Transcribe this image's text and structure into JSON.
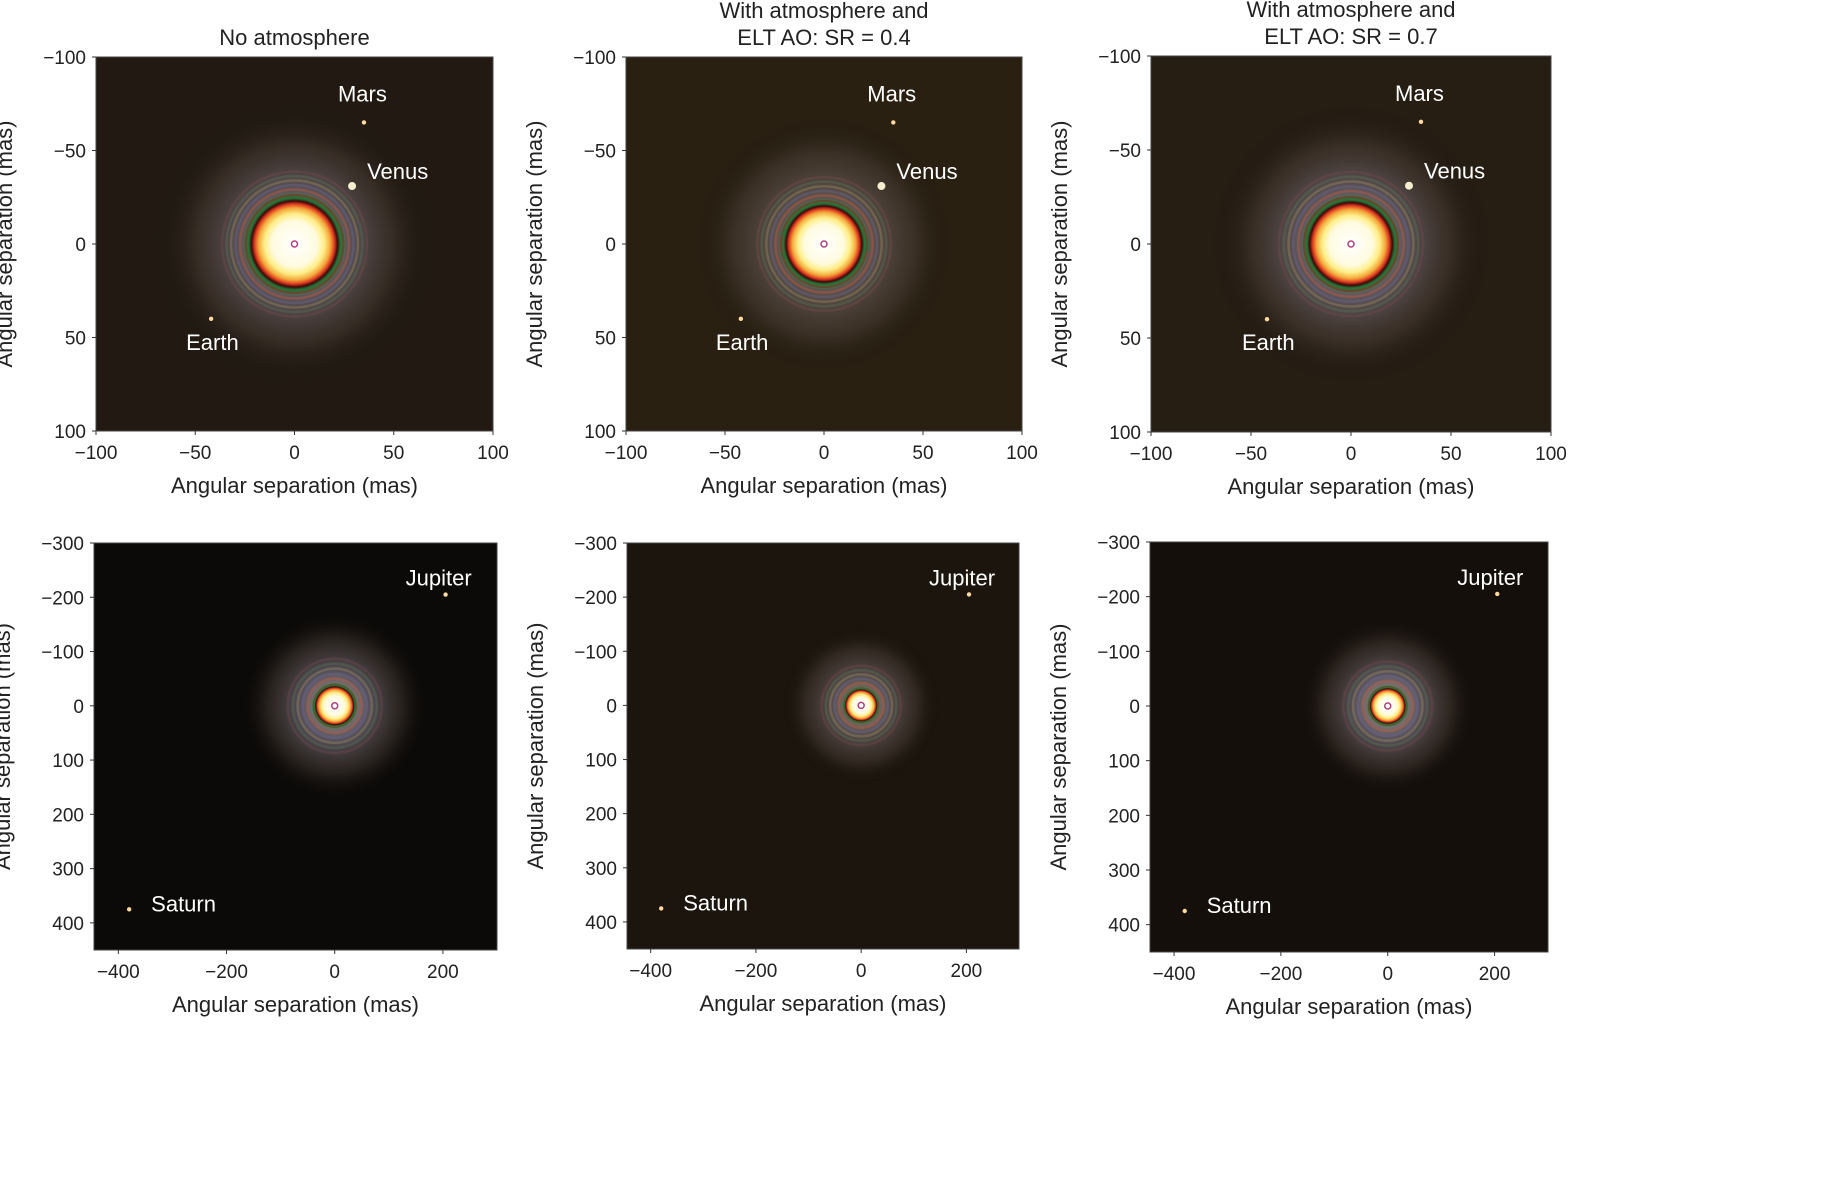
{
  "chart_data": [
    {
      "type": "heatmap",
      "title": [
        "No atmosphere"
      ],
      "xlabel": "Angular separation (mas)",
      "ylabel": "Angular separation (mas)",
      "xlim": [
        -100,
        100
      ],
      "ylim": [
        -100,
        100
      ],
      "y_inverted": true,
      "xticks": [
        -100,
        -50,
        0,
        50,
        100
      ],
      "yticks": [
        -100,
        -50,
        0,
        50,
        100
      ],
      "xtick_labels": [
        "−100",
        "−50",
        "0",
        "50",
        "100"
      ],
      "ytick_labels": [
        "−100",
        "−50",
        "0",
        "50",
        "100"
      ],
      "grid": false,
      "star_profile": "sharp",
      "background_color": "#221a12",
      "objects": [
        {
          "name": "Mars",
          "x": 35,
          "y": -65
        },
        {
          "name": "Venus",
          "x": 29,
          "y": -31
        },
        {
          "name": "Earth",
          "x": -42,
          "y": 40
        }
      ]
    },
    {
      "type": "heatmap",
      "title": [
        "With atmosphere and",
        "ELT AO: SR = 0.4"
      ],
      "xlabel": "Angular separation (mas)",
      "ylabel": "Angular separation (mas)",
      "xlim": [
        -100,
        100
      ],
      "ylim": [
        -100,
        100
      ],
      "y_inverted": true,
      "xticks": [
        -100,
        -50,
        0,
        50,
        100
      ],
      "yticks": [
        -100,
        -50,
        0,
        50,
        100
      ],
      "xtick_labels": [
        "−100",
        "−50",
        "0",
        "50",
        "100"
      ],
      "ytick_labels": [
        "−100",
        "−50",
        "0",
        "50",
        "100"
      ],
      "grid": false,
      "star_profile": "soft",
      "background_color": "#2a2012",
      "objects": [
        {
          "name": "Mars",
          "x": 35,
          "y": -65
        },
        {
          "name": "Venus",
          "x": 29,
          "y": -31
        },
        {
          "name": "Earth",
          "x": -42,
          "y": 40
        }
      ]
    },
    {
      "type": "heatmap",
      "title": [
        "With atmosphere and",
        "ELT AO: SR = 0.7"
      ],
      "xlabel": "Angular separation (mas)",
      "ylabel": "Angular separation (mas)",
      "xlim": [
        -100,
        100
      ],
      "ylim": [
        -100,
        100
      ],
      "y_inverted": true,
      "xticks": [
        -100,
        -50,
        0,
        50,
        100
      ],
      "yticks": [
        -100,
        -50,
        0,
        50,
        100
      ],
      "xtick_labels": [
        "−100",
        "−50",
        "0",
        "50",
        "100"
      ],
      "ytick_labels": [
        "−100",
        "−50",
        "0",
        "50",
        "100"
      ],
      "grid": false,
      "star_profile": "sharp",
      "background_color": "#261d13",
      "objects": [
        {
          "name": "Mars",
          "x": 35,
          "y": -65
        },
        {
          "name": "Venus",
          "x": 29,
          "y": -31
        },
        {
          "name": "Earth",
          "x": -42,
          "y": 40
        }
      ]
    },
    {
      "type": "heatmap",
      "title": [],
      "xlabel": "Angular separation (mas)",
      "ylabel": "Angular separation (mas)",
      "xlim": [
        -445,
        300
      ],
      "ylim": [
        -300,
        450
      ],
      "y_inverted": true,
      "xticks": [
        -400,
        -200,
        0,
        200
      ],
      "yticks": [
        -300,
        -200,
        -100,
        0,
        100,
        200,
        300,
        400
      ],
      "xtick_labels": [
        "−400",
        "−200",
        "0",
        "200"
      ],
      "ytick_labels": [
        "−300",
        "−200",
        "−100",
        "0",
        "100",
        "200",
        "300",
        "400"
      ],
      "grid": false,
      "star_profile": "sharp",
      "background_color": "#0c0a08",
      "objects": [
        {
          "name": "Jupiter",
          "x": 205,
          "y": -205
        },
        {
          "name": "Saturn",
          "x": -380,
          "y": 375
        }
      ]
    },
    {
      "type": "heatmap",
      "title": [],
      "xlabel": "Angular separation (mas)",
      "ylabel": "Angular separation (mas)",
      "xlim": [
        -445,
        300
      ],
      "ylim": [
        -300,
        450
      ],
      "y_inverted": true,
      "xticks": [
        -400,
        -200,
        0,
        200
      ],
      "yticks": [
        -300,
        -200,
        -100,
        0,
        100,
        200,
        300,
        400
      ],
      "xtick_labels": [
        "−400",
        "−200",
        "0",
        "200"
      ],
      "ytick_labels": [
        "−300",
        "−200",
        "−100",
        "0",
        "100",
        "200",
        "300",
        "400"
      ],
      "grid": false,
      "star_profile": "soft",
      "background_color": "#1c150d",
      "objects": [
        {
          "name": "Jupiter",
          "x": 205,
          "y": -205
        },
        {
          "name": "Saturn",
          "x": -380,
          "y": 375
        }
      ]
    },
    {
      "type": "heatmap",
      "title": [],
      "xlabel": "Angular separation (mas)",
      "ylabel": "Angular separation (mas)",
      "xlim": [
        -445,
        300
      ],
      "ylim": [
        -300,
        450
      ],
      "y_inverted": true,
      "xticks": [
        -400,
        -200,
        0,
        200
      ],
      "yticks": [
        -300,
        -200,
        -100,
        0,
        100,
        200,
        300,
        400
      ],
      "xtick_labels": [
        "−400",
        "−200",
        "0",
        "200"
      ],
      "ytick_labels": [
        "−300",
        "−200",
        "−100",
        "0",
        "100",
        "200",
        "300",
        "400"
      ],
      "grid": false,
      "star_profile": "sharp",
      "background_color": "#140f0a",
      "objects": [
        {
          "name": "Jupiter",
          "x": 205,
          "y": -205
        },
        {
          "name": "Saturn",
          "x": -380,
          "y": 375
        }
      ]
    }
  ]
}
